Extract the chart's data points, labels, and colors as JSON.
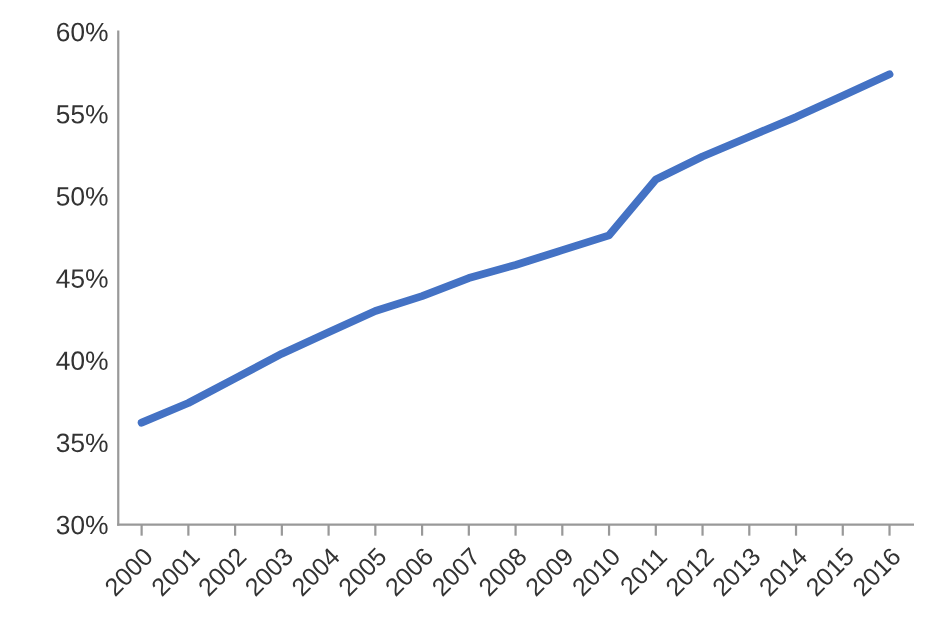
{
  "chart_data": {
    "type": "line",
    "categories": [
      "2000",
      "2001",
      "2002",
      "2003",
      "2004",
      "2005",
      "2006",
      "2007",
      "2008",
      "2009",
      "2010",
      "2011",
      "2012",
      "2013",
      "2014",
      "2015",
      "2016"
    ],
    "series": [
      {
        "color": "#4472c4",
        "values": [
          36.2,
          37.4,
          38.9,
          40.4,
          41.7,
          43.0,
          43.9,
          45.0,
          45.8,
          46.7,
          47.6,
          51.0,
          52.4,
          53.6,
          54.8,
          56.1,
          57.4
        ]
      }
    ],
    "ylim": [
      30,
      60
    ],
    "yticks": [
      {
        "value": 30,
        "label": "30%"
      },
      {
        "value": 35,
        "label": "35%"
      },
      {
        "value": 40,
        "label": "40%"
      },
      {
        "value": 45,
        "label": "45%"
      },
      {
        "value": 50,
        "label": "50%"
      },
      {
        "value": 55,
        "label": "55%"
      },
      {
        "value": 60,
        "label": "60%"
      }
    ],
    "grid": false,
    "legend": false,
    "marker": "none",
    "line_style": "solid"
  }
}
